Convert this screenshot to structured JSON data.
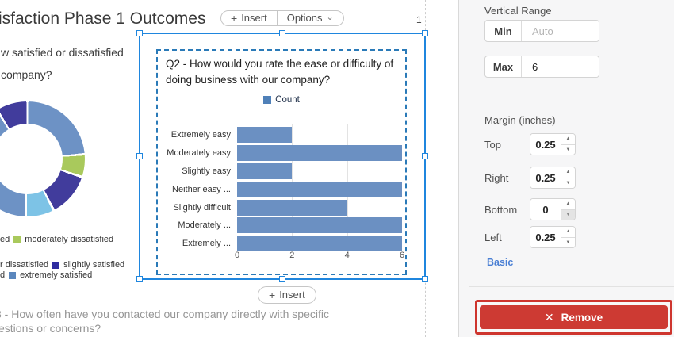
{
  "colors": {
    "selection_blue": "#1f86de",
    "element_border_blue": "#2a7ab8",
    "bar_blue": "#6b90c2",
    "count_legend_blue": "#4f80b8",
    "panel_bg": "#f6f6f7",
    "remove_red": "#cd3a33",
    "link_blue": "#4a7fd4",
    "guide_gray": "#cdcdcd"
  },
  "icons": {
    "plus": "+",
    "chevron_down": "⌄",
    "remove_x": "✕",
    "stepper_up": "▲",
    "stepper_down": "▼"
  },
  "canvas": {
    "title_fragment": "isfaction Phase 1 Outcomes",
    "page_number": "1",
    "insert_top_label": "Insert",
    "options_label": "Options",
    "insert_bottom_label": "Insert",
    "q1_line1": "w satisfied or dissatisfied",
    "q1_line2": "company?",
    "q3_line1": "3 - How often have you contacted our company directly with specific",
    "q3_line2": "estions or concerns?",
    "donut_legend_rows": [
      {
        "prefix": "ed",
        "items": [
          {
            "color": "#a9c95c",
            "label": "moderately dissatisfied"
          }
        ]
      },
      {
        "prefix": "r dissatisfied",
        "items": [
          {
            "color": "#2f2da0",
            "label": "slightly satisfied"
          }
        ]
      },
      {
        "prefix": "d",
        "items": [
          {
            "color": "#5b87bd",
            "label": "extremely satisfied"
          }
        ]
      }
    ]
  },
  "chart_data": [
    {
      "type": "bar",
      "orientation": "horizontal",
      "title": "Q2 - How would you rate the ease or difficulty of doing business with our company?",
      "legend": [
        {
          "label": "Count",
          "color": "#4f80b8"
        }
      ],
      "legend_position": "top-center",
      "categories": [
        "Extremely easy",
        "Moderately easy",
        "Slightly easy",
        "Neither easy ...",
        "Slightly difficult",
        "Moderately ...",
        "Extremely ..."
      ],
      "values": [
        2,
        6,
        2,
        6,
        4,
        6,
        6
      ],
      "xlabel": "",
      "ylabel": "",
      "xlim": [
        0,
        6
      ],
      "xticks": [
        0,
        2,
        4,
        6
      ],
      "grid": "faint vertical gridlines at 2 and 4",
      "bar_color": "#6b90c2"
    },
    {
      "type": "pie",
      "subtype": "donut",
      "note": "partially visible, cropped by left screen edge; angles in degrees clockwise from top",
      "segments": [
        {
          "color": "#ffffff",
          "from": 0,
          "to": 1
        },
        {
          "color": "#6d92c5",
          "from": 1,
          "to": 84
        },
        {
          "color": "#ffffff",
          "from": 84,
          "to": 86.5
        },
        {
          "color": "#a9c95c",
          "from": 86.5,
          "to": 107
        },
        {
          "color": "#ffffff",
          "from": 107,
          "to": 109.5
        },
        {
          "color": "#413c9c",
          "from": 109.5,
          "to": 151.5
        },
        {
          "color": "#ffffff",
          "from": 151.5,
          "to": 154
        },
        {
          "color": "#7dc3e6",
          "from": 154,
          "to": 180.5
        },
        {
          "color": "#ffffff",
          "from": 180.5,
          "to": 183
        },
        {
          "color": "#6d92c5",
          "from": 183,
          "to": 327
        },
        {
          "color": "#ffffff",
          "from": 327,
          "to": 329.5
        },
        {
          "color": "#413c9c",
          "from": 329.5,
          "to": 359
        },
        {
          "color": "#ffffff",
          "from": 359,
          "to": 360
        }
      ],
      "legend_visible_labels": [
        "moderately dissatisfied",
        "slightly satisfied",
        "extremely satisfied"
      ]
    }
  ],
  "panel": {
    "vertical_range": {
      "label": "Vertical Range",
      "min_label": "Min",
      "min_placeholder": "Auto",
      "max_label": "Max",
      "max_value": "6"
    },
    "margin": {
      "label": "Margin (inches)",
      "rows": [
        {
          "label": "Top",
          "value": "0.25",
          "down_disabled": false
        },
        {
          "label": "Right",
          "value": "0.25",
          "down_disabled": false
        },
        {
          "label": "Bottom",
          "value": "0",
          "down_disabled": true
        },
        {
          "label": "Left",
          "value": "0.25",
          "down_disabled": false
        }
      ]
    },
    "basic_link": "Basic",
    "remove_label": "Remove"
  }
}
